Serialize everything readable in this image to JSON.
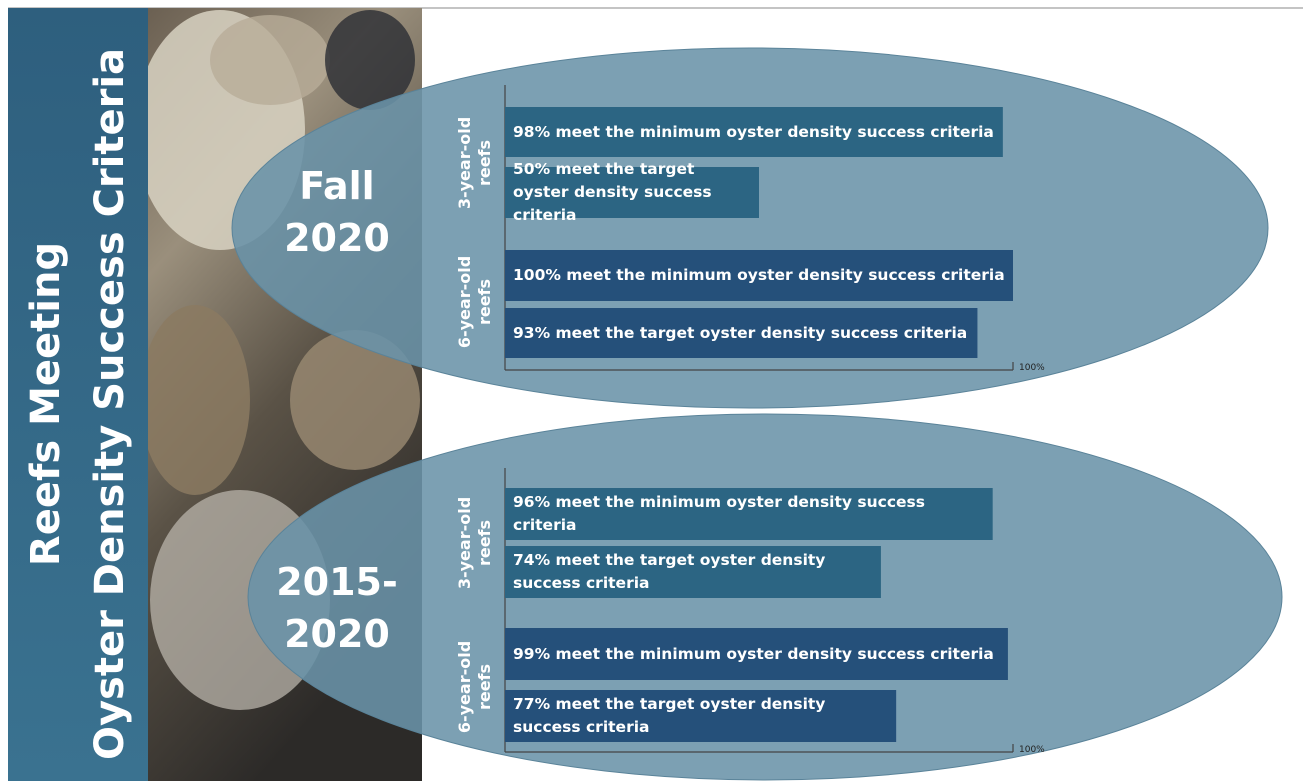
{
  "title": [
    "Reefs Meeting",
    "Oyster Density Success Criteria"
  ],
  "chart_data": [
    {
      "type": "bar",
      "orientation": "horizontal",
      "title": "Fall 2020",
      "xlim": [
        0,
        100
      ],
      "xticks": [
        {
          "value": 100,
          "label": "100%"
        }
      ],
      "groups": [
        {
          "label": "3-year-old reefs",
          "color": "#2c6583",
          "values": [
            98,
            50
          ],
          "value_labels": [
            "98% meet the minimum oyster density success criteria",
            "50% meet the target oyster density success criteria"
          ]
        },
        {
          "label": "6-year-old reefs",
          "color": "#25507a",
          "values": [
            100,
            93
          ],
          "value_labels": [
            "100% meet the minimum oyster density success criteria",
            "93% meet the target oyster density success criteria"
          ]
        }
      ]
    },
    {
      "type": "bar",
      "orientation": "horizontal",
      "title": "2015-2020",
      "xlim": [
        0,
        100
      ],
      "xticks": [
        {
          "value": 100,
          "label": "100%"
        }
      ],
      "groups": [
        {
          "label": "3-year-old reefs",
          "color": "#2c6583",
          "values": [
            96,
            74
          ],
          "value_labels": [
            "96% meet the minimum oyster density success criteria",
            "74% meet the target oyster density success criteria"
          ]
        },
        {
          "label": "6-year-old reefs",
          "color": "#25507a",
          "values": [
            99,
            77
          ],
          "value_labels": [
            "99% meet the minimum oyster density success criteria",
            "77% meet the target oyster density success criteria"
          ]
        }
      ]
    }
  ]
}
